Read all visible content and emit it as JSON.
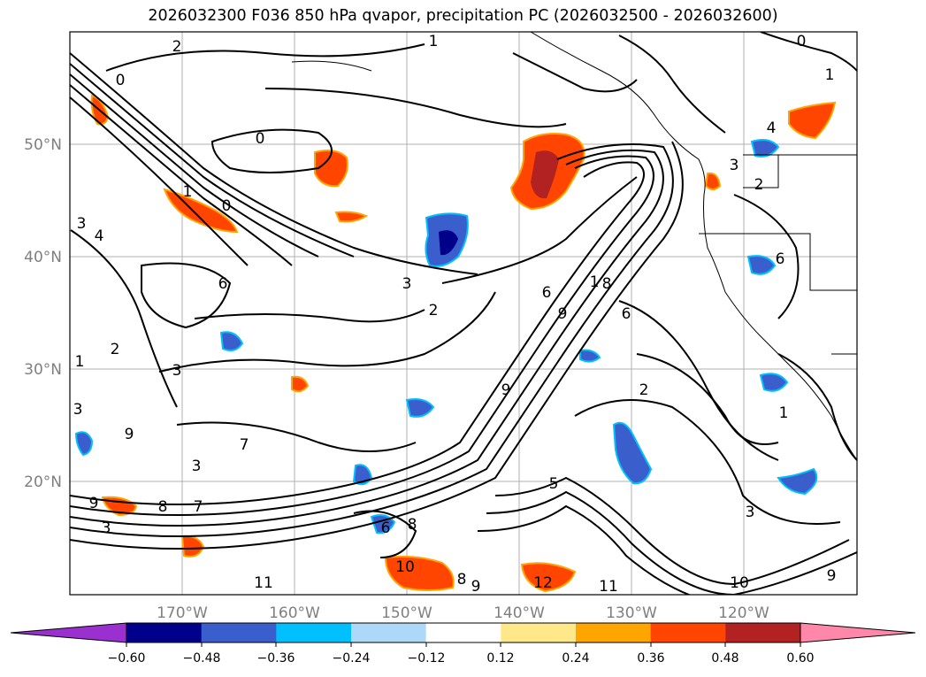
{
  "title": "2026032300 F036 850 hPa qvapor, precipitation PC (2026032500 - 2026032600)",
  "map": {
    "lat_labels": [
      "50°N",
      "40°N",
      "30°N",
      "20°N"
    ],
    "lon_labels": [
      "170°W",
      "160°W",
      "150°W",
      "140°W",
      "130°W",
      "120°W"
    ],
    "contour_labels": [
      "2",
      "1",
      "0",
      "1",
      "0",
      "0",
      "1",
      "0",
      "3",
      "4",
      "3",
      "1",
      "2",
      "6",
      "3",
      "2",
      "1",
      "6",
      "9",
      "8",
      "9",
      "3",
      "9",
      "3",
      "7",
      "3",
      "8",
      "7",
      "9",
      "8",
      "6",
      "8",
      "10",
      "11",
      "9",
      "12",
      "11",
      "10",
      "5",
      "3",
      "2",
      "1",
      "9",
      "6",
      "2",
      "3",
      "4",
      "6"
    ]
  },
  "colorbar": {
    "tick_labels": [
      "−0.60",
      "−0.48",
      "−0.36",
      "−0.24",
      "−0.12",
      "0.12",
      "0.24",
      "0.36",
      "0.48",
      "0.60"
    ],
    "colors": [
      "#9b30d0",
      "#00008b",
      "#3a5fcd",
      "#00bfff",
      "#add8f7",
      "#ffffff",
      "#ffe88a",
      "#ffa500",
      "#ff4500",
      "#b22222",
      "#ff88aa"
    ]
  }
}
